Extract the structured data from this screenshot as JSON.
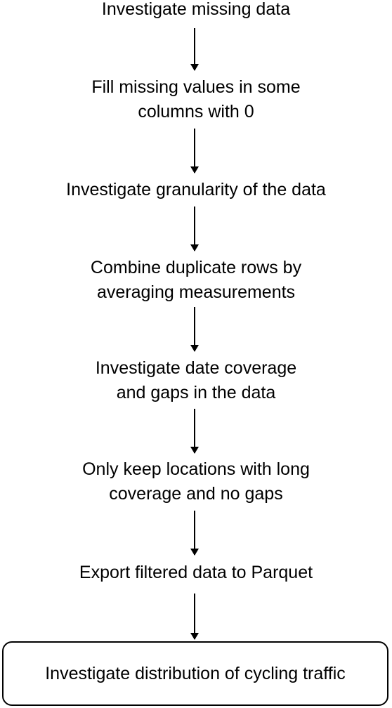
{
  "flowchart": {
    "steps": [
      {
        "lines": [
          "Investigate missing data"
        ]
      },
      {
        "lines": [
          "Fill missing values in some",
          "columns with 0"
        ]
      },
      {
        "lines": [
          "Investigate granularity of the data"
        ]
      },
      {
        "lines": [
          "Combine duplicate rows by",
          "averaging measurements"
        ]
      },
      {
        "lines": [
          "Investigate date coverage",
          "and gaps in the data"
        ]
      },
      {
        "lines": [
          "Only keep locations with long",
          "coverage and no gaps"
        ]
      },
      {
        "lines": [
          "Export filtered data to Parquet"
        ]
      }
    ],
    "final_step": "Investigate distribution of cycling traffic"
  }
}
